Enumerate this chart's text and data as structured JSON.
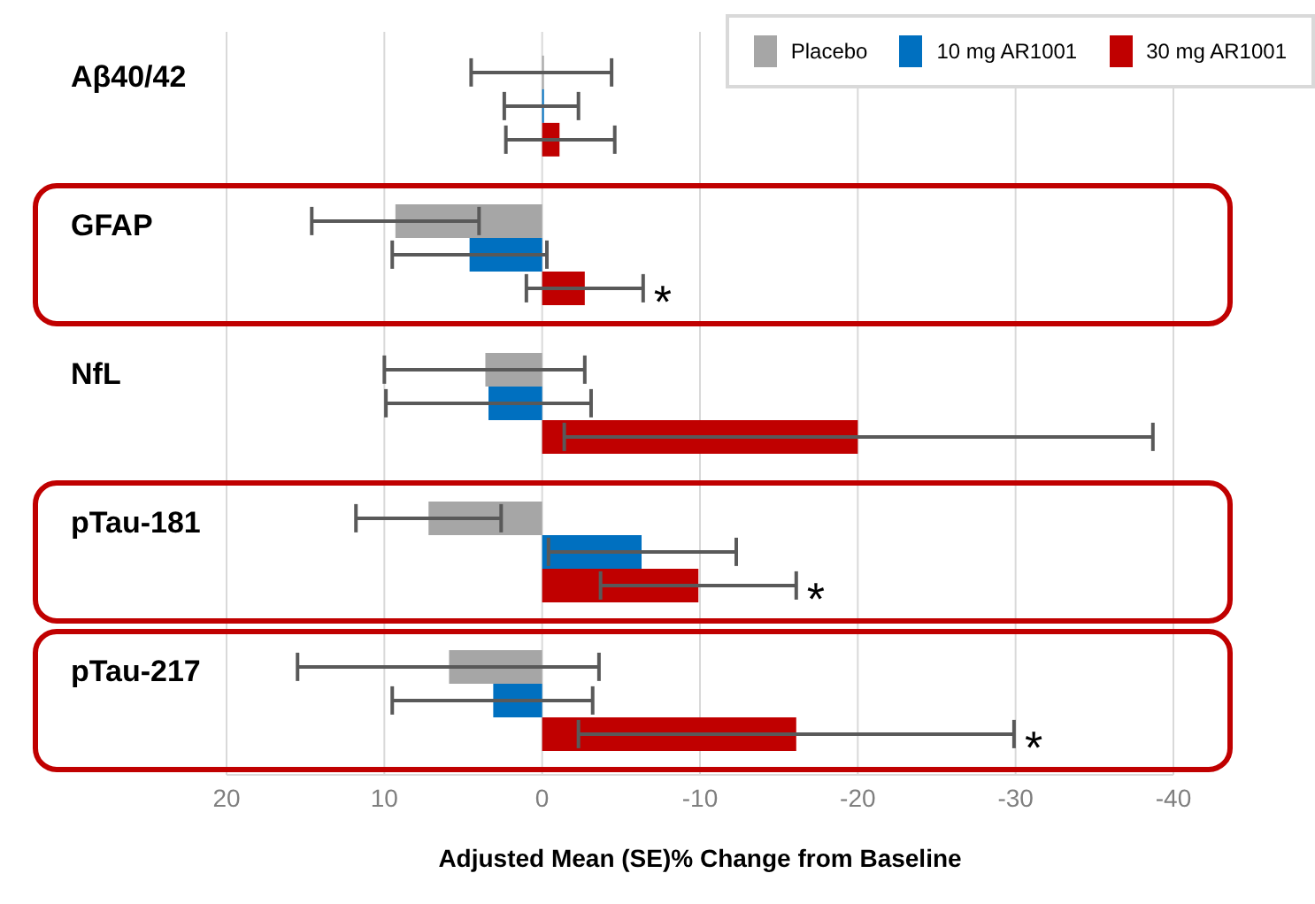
{
  "chart_data": {
    "type": "bar",
    "orientation": "horizontal",
    "xlabel": "Adjusted Mean (SE)% Change from Baseline",
    "categories": [
      "Aβ40/42",
      "GFAP",
      "NfL",
      "pTau-181",
      "pTau-217"
    ],
    "series": [
      {
        "name": "Placebo",
        "color": "#a6a6a6",
        "values": [
          0,
          9.3,
          3.6,
          7.2,
          5.9
        ],
        "errors": [
          [
            -4.4,
            4.5
          ],
          [
            4.0,
            14.6
          ],
          [
            -2.7,
            10.0
          ],
          [
            2.6,
            11.8
          ],
          [
            -3.6,
            15.5
          ]
        ]
      },
      {
        "name": "10 mg AR1001",
        "color": "#0070c0",
        "values": [
          0,
          4.6,
          3.4,
          -6.3,
          3.1
        ],
        "errors": [
          [
            -2.3,
            2.4
          ],
          [
            -0.3,
            9.5
          ],
          [
            -3.1,
            9.9
          ],
          [
            -12.3,
            -0.4
          ],
          [
            -3.2,
            9.5
          ]
        ]
      },
      {
        "name": "30 mg AR1001",
        "color": "#c00000",
        "values": [
          -1.1,
          -2.7,
          -20.0,
          -9.9,
          -16.1
        ],
        "errors": [
          [
            -4.6,
            2.3
          ],
          [
            -6.4,
            1.0
          ],
          [
            -38.7,
            -1.4
          ],
          [
            -16.1,
            -3.7
          ],
          [
            -29.9,
            -2.3
          ]
        ]
      }
    ],
    "xlim": [
      20,
      -40
    ],
    "xticks": [
      20,
      10,
      0,
      -10,
      -20,
      -30,
      -40
    ],
    "grid": "x",
    "legend": "top right",
    "annotations": [
      {
        "text": "*",
        "x": -6.4,
        "y": "GFAP"
      },
      {
        "text": "*",
        "x": -16.1,
        "y": "pTau-181"
      },
      {
        "text": "*",
        "x": -29.9,
        "y": "pTau-217"
      }
    ]
  }
}
